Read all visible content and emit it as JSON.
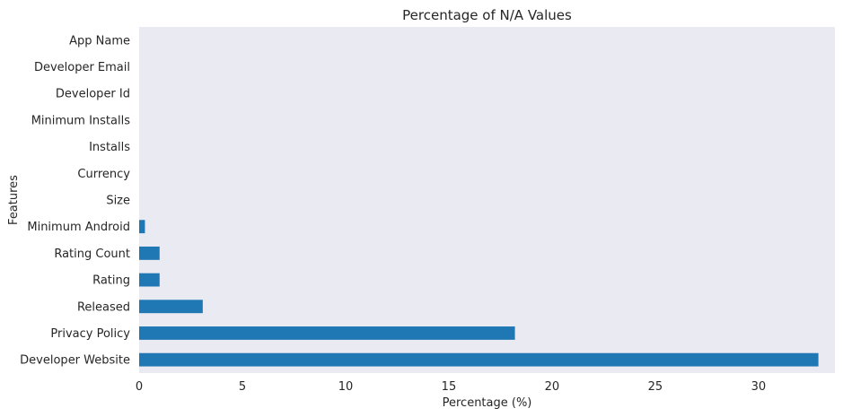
{
  "chart_data": {
    "type": "bar",
    "orientation": "horizontal",
    "title": "Percentage of N/A Values",
    "xlabel": "Percentage (%)",
    "ylabel": "Features",
    "xlim": [
      0,
      33.7
    ],
    "xticks": [
      0,
      5,
      10,
      15,
      20,
      25,
      30
    ],
    "grid": false,
    "categories": [
      "App Name",
      "Developer Email",
      "Developer Id",
      "Minimum Installs",
      "Installs",
      "Currency",
      "Size",
      "Minimum Android",
      "Rating Count",
      "Rating",
      "Released",
      "Privacy Policy",
      "Developer Website"
    ],
    "values": [
      0,
      0,
      0,
      0,
      0,
      0,
      0,
      0.28,
      0.99,
      0.99,
      3.08,
      18.2,
      32.9
    ],
    "colors": {
      "bar": "#1f77b4",
      "plot_background": "#eaeaf2",
      "text": "#262626"
    }
  }
}
